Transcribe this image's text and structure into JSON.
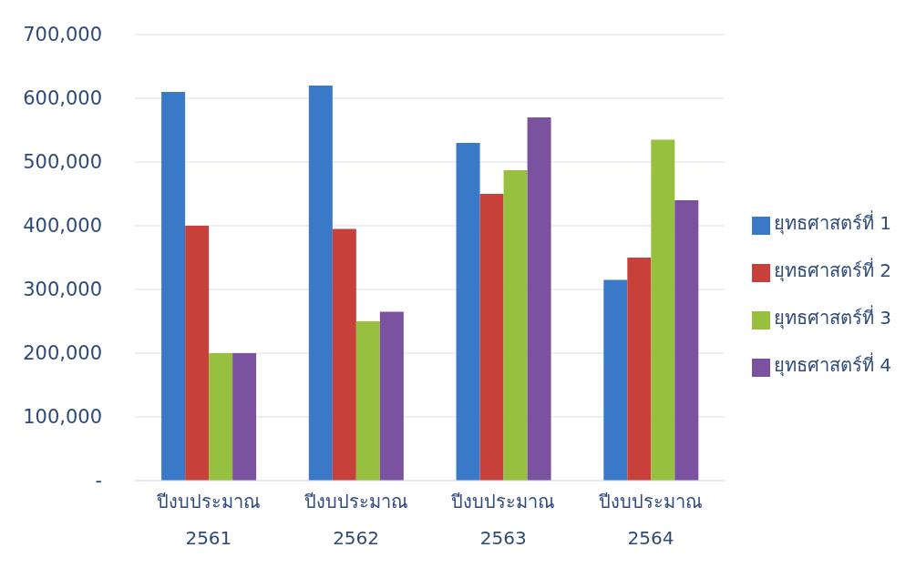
{
  "chart_data": {
    "type": "bar",
    "categories": [
      "ปีงบประมาณ 2561",
      "ปีงบประมาณ 2562",
      "ปีงบประมาณ 2563",
      "ปีงบประมาณ 2564"
    ],
    "series": [
      {
        "name": "ยุทธศาสตร์ที่ 1",
        "color": "#3a78c8",
        "values": [
          610000,
          620000,
          530000,
          315000
        ]
      },
      {
        "name": "ยุทธศาสตร์ที่ 2",
        "color": "#c8403a",
        "values": [
          400000,
          395000,
          450000,
          350000
        ]
      },
      {
        "name": "ยุทธศาสตร์ที่ 3",
        "color": "#98c040",
        "values": [
          200000,
          250000,
          487000,
          535000
        ]
      },
      {
        "name": "ยุทธศาสตร์ที่ 4",
        "color": "#7a52a0",
        "values": [
          200000,
          265000,
          570000,
          440000
        ]
      }
    ],
    "ylim": [
      0,
      700000
    ],
    "yticks": [
      {
        "value": 0,
        "label": "-"
      },
      {
        "value": 100000,
        "label": "100,000"
      },
      {
        "value": 200000,
        "label": "200,000"
      },
      {
        "value": 300000,
        "label": "300,000"
      },
      {
        "value": 400000,
        "label": "400,000"
      },
      {
        "value": 500000,
        "label": "500,000"
      },
      {
        "value": 600000,
        "label": "600,000"
      },
      {
        "value": 700000,
        "label": "700,000"
      }
    ],
    "grid": "y",
    "legend": "right"
  }
}
